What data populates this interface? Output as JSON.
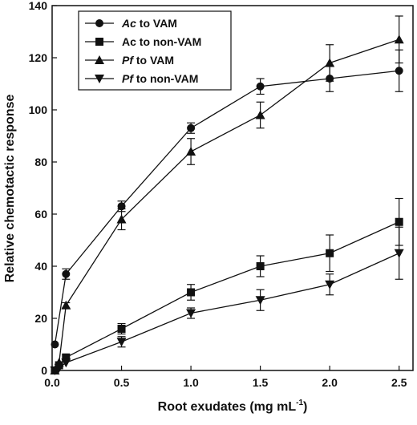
{
  "chart_data": {
    "type": "line",
    "xlabel": "Root exudates (mg mL",
    "xlabel_superscript": "-1",
    "xlabel_suffix": ")",
    "ylabel": "Relative chemotactic response",
    "xlim": [
      0,
      2.6
    ],
    "ylim": [
      0,
      140
    ],
    "x_ticks": [
      0.0,
      0.5,
      1.0,
      1.5,
      2.0,
      2.5
    ],
    "x_tick_labels": [
      "0.0",
      "0.5",
      "1.0",
      "1.5",
      "2.0",
      "2.5"
    ],
    "y_ticks": [
      0,
      20,
      40,
      60,
      80,
      100,
      120,
      140
    ],
    "y_tick_labels": [
      "0",
      "20",
      "40",
      "60",
      "80",
      "100",
      "120",
      "140"
    ],
    "grid": false,
    "legend_position": "top-left",
    "series": [
      {
        "name_italic": "Ac",
        "name_rest": " to VAM",
        "marker": "circle",
        "x": [
          0.02,
          0.1,
          0.5,
          1.0,
          1.5,
          2.0,
          2.5
        ],
        "y": [
          10,
          37,
          63,
          93,
          109,
          112,
          115
        ],
        "err": [
          0,
          2,
          2,
          2,
          3,
          5,
          8
        ]
      },
      {
        "name_italic": "",
        "name_rest": "Ac to non-VAM",
        "marker": "square",
        "x": [
          0.02,
          0.05,
          0.1,
          0.5,
          1.0,
          1.5,
          2.0,
          2.5
        ],
        "y": [
          0,
          2,
          5,
          16,
          30,
          40,
          45,
          57
        ],
        "err": [
          0,
          0,
          1,
          2,
          3,
          4,
          7,
          9
        ]
      },
      {
        "name_italic": "Pf",
        "name_rest": " to VAM",
        "marker": "triangle-up",
        "x": [
          0.02,
          0.05,
          0.1,
          0.5,
          1.0,
          1.5,
          2.0,
          2.5
        ],
        "y": [
          0,
          3,
          25,
          58,
          84,
          98,
          118,
          127
        ],
        "err": [
          0,
          0,
          1,
          4,
          5,
          5,
          7,
          9
        ]
      },
      {
        "name_italic": "Pf",
        "name_rest": " to non-VAM",
        "marker": "triangle-down",
        "x": [
          0.02,
          0.05,
          0.1,
          0.5,
          1.0,
          1.5,
          2.0,
          2.5
        ],
        "y": [
          0,
          1,
          3,
          11,
          22,
          27,
          33,
          45
        ],
        "err": [
          0,
          0,
          0,
          2,
          2,
          4,
          4,
          10
        ]
      }
    ]
  }
}
